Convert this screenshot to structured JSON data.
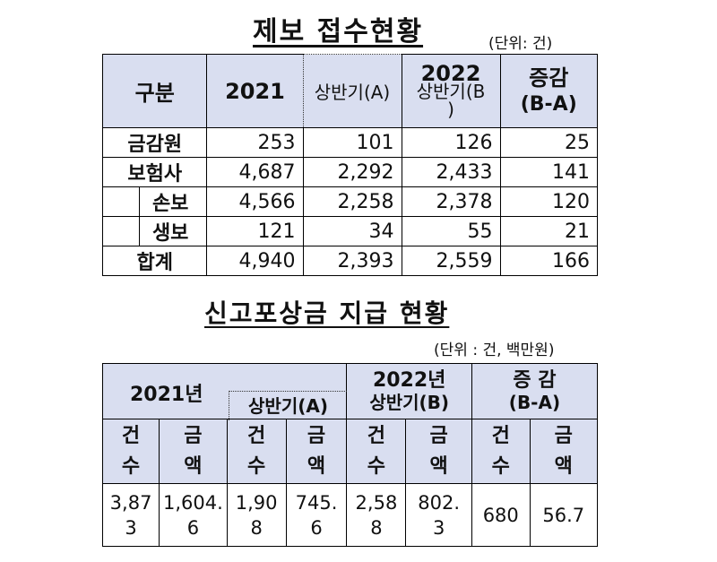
{
  "table1": {
    "title": "제보 접수현황",
    "unit": "(단위: 건)",
    "headers": {
      "category": "구분",
      "y2021": "2021",
      "h1": "상반기(A)",
      "y2022": "2022",
      "h1_2022": "상반기(B",
      "h1_2022_end": ")",
      "change": "증감",
      "change_sub": "(B-A)"
    },
    "rows": [
      {
        "label": "금감원",
        "v2021": "253",
        "h1_2021": "101",
        "h1_2022": "126",
        "change": "25"
      },
      {
        "label": "보험사",
        "v2021": "4,687",
        "h1_2021": "2,292",
        "h1_2022": "2,433",
        "change": "141"
      },
      {
        "label": "손보",
        "v2021": "4,566",
        "h1_2021": "2,258",
        "h1_2022": "2,378",
        "change": "120"
      },
      {
        "label": "생보",
        "v2021": "121",
        "h1_2021": "34",
        "h1_2022": "55",
        "change": "21"
      },
      {
        "label": "합계",
        "v2021": "4,940",
        "h1_2021": "2,393",
        "h1_2022": "2,559",
        "change": "166"
      }
    ]
  },
  "table2": {
    "title": "신고포상금 지급 현황",
    "unit": "(단위 : 건, 백만원)",
    "headers": {
      "y2021": "2021년",
      "h1_a": "상반기(A)",
      "y2022": "2022년",
      "h1_b": "상반기(B)",
      "change1": "증 감",
      "change2": "(B-A)",
      "count1": "건",
      "count2": "수",
      "amount1": "금",
      "amount2": "액"
    },
    "values": [
      {
        "l1": "3,87",
        "l2": "3"
      },
      {
        "l1": "1,604.",
        "l2": "6"
      },
      {
        "l1": "1,90",
        "l2": "8"
      },
      {
        "l1": "745.",
        "l2": "6"
      },
      {
        "l1": "2,58",
        "l2": "8"
      },
      {
        "l1": "802.",
        "l2": "3"
      },
      {
        "l1": "680",
        "l2": ""
      },
      {
        "l1": "56.7",
        "l2": ""
      }
    ]
  }
}
